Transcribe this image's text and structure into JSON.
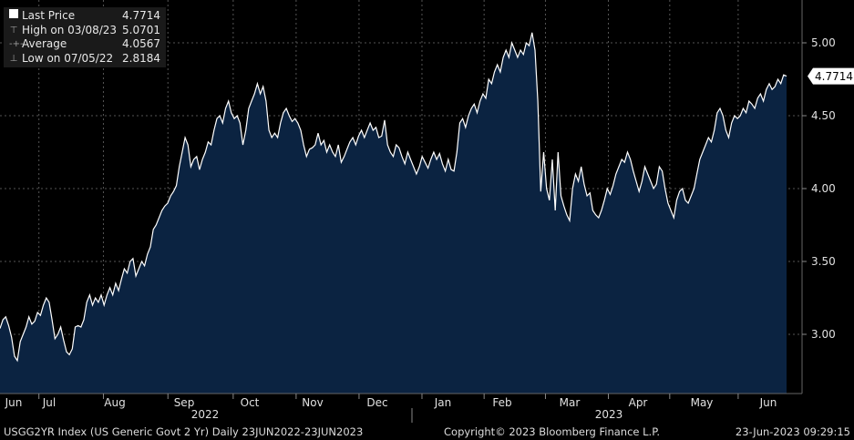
{
  "legend": {
    "rows": [
      {
        "label": "Last Price",
        "value": "4.7714",
        "icon": "filled-square-icon"
      },
      {
        "label": "High on 03/08/23",
        "value": "5.0701",
        "icon": "high-marker-icon"
      },
      {
        "label": "Average",
        "value": "4.0567",
        "icon": "average-marker-icon"
      },
      {
        "label": "Low on 07/05/22",
        "value": "2.8184",
        "icon": "low-marker-icon"
      }
    ]
  },
  "footer": {
    "left": "USGG2YR Index (US Generic Govt 2 Yr)  Daily 23JUN2022-23JUN2023",
    "center": "Copyright© 2023 Bloomberg Finance L.P.",
    "right": "23-Jun-2023 09:29:15"
  },
  "colors": {
    "fill": "#0b2341",
    "line": "#ffffff",
    "background": "#000000",
    "grid": "#555555"
  },
  "chart_data": {
    "type": "area",
    "ylim": [
      2.6,
      5.25
    ],
    "yticks": [
      3.0,
      3.5,
      4.0,
      4.5,
      5.0
    ],
    "ytick_labels": [
      "3.00",
      "3.50",
      "4.00",
      "4.50",
      "5.00"
    ],
    "last_label": "4.7714",
    "x_axis_labels": [
      "Jun",
      "Jul",
      "Aug",
      "Sep",
      "Oct",
      "Nov",
      "Dec",
      "Jan",
      "Feb",
      "Mar",
      "Apr",
      "May",
      "Jun"
    ],
    "year_labels": [
      "2022",
      "2023"
    ],
    "grid": true,
    "series": [
      {
        "values": [
          3.04,
          3.1,
          3.12,
          3.06,
          2.98,
          2.85,
          2.82,
          2.95,
          3.0,
          3.05,
          3.12,
          3.07,
          3.09,
          3.15,
          3.13,
          3.2,
          3.25,
          3.22,
          3.1,
          2.97,
          3.0,
          3.05,
          2.96,
          2.88,
          2.86,
          2.9,
          3.05,
          3.06,
          3.05,
          3.1,
          3.22,
          3.27,
          3.2,
          3.25,
          3.22,
          3.27,
          3.2,
          3.27,
          3.32,
          3.27,
          3.35,
          3.3,
          3.38,
          3.45,
          3.42,
          3.5,
          3.52,
          3.4,
          3.45,
          3.5,
          3.47,
          3.55,
          3.6,
          3.72,
          3.75,
          3.8,
          3.85,
          3.88,
          3.9,
          3.95,
          3.98,
          4.02,
          4.15,
          4.25,
          4.35,
          4.3,
          4.15,
          4.2,
          4.22,
          4.13,
          4.2,
          4.25,
          4.32,
          4.3,
          4.4,
          4.48,
          4.5,
          4.45,
          4.55,
          4.6,
          4.52,
          4.48,
          4.5,
          4.45,
          4.3,
          4.4,
          4.55,
          4.6,
          4.65,
          4.72,
          4.65,
          4.7,
          4.6,
          4.4,
          4.35,
          4.38,
          4.35,
          4.45,
          4.52,
          4.55,
          4.5,
          4.46,
          4.48,
          4.45,
          4.4,
          4.3,
          4.22,
          4.27,
          4.28,
          4.3,
          4.38,
          4.3,
          4.33,
          4.25,
          4.3,
          4.25,
          4.22,
          4.3,
          4.18,
          4.22,
          4.27,
          4.32,
          4.35,
          4.3,
          4.36,
          4.4,
          4.35,
          4.4,
          4.45,
          4.4,
          4.42,
          4.35,
          4.36,
          4.47,
          4.3,
          4.25,
          4.22,
          4.3,
          4.28,
          4.22,
          4.17,
          4.25,
          4.2,
          4.15,
          4.1,
          4.15,
          4.22,
          4.18,
          4.14,
          4.2,
          4.25,
          4.2,
          4.24,
          4.17,
          4.12,
          4.2,
          4.13,
          4.12,
          4.25,
          4.45,
          4.48,
          4.42,
          4.5,
          4.55,
          4.58,
          4.52,
          4.6,
          4.65,
          4.62,
          4.75,
          4.72,
          4.8,
          4.85,
          4.8,
          4.9,
          4.95,
          4.9,
          5.0,
          4.95,
          4.9,
          4.95,
          4.92,
          5.0,
          4.98,
          5.07,
          4.95,
          4.6,
          3.98,
          4.25,
          4.0,
          3.92,
          4.2,
          3.85,
          4.25,
          3.95,
          3.88,
          3.82,
          3.78,
          4.0,
          4.1,
          4.05,
          4.15,
          4.03,
          3.95,
          3.97,
          3.85,
          3.82,
          3.8,
          3.85,
          3.92,
          4.0,
          3.96,
          4.02,
          4.1,
          4.15,
          4.2,
          4.18,
          4.25,
          4.2,
          4.12,
          4.05,
          3.98,
          4.05,
          4.15,
          4.1,
          4.05,
          4.0,
          4.03,
          4.15,
          4.12,
          4.0,
          3.9,
          3.85,
          3.8,
          3.92,
          3.98,
          4.0,
          3.92,
          3.9,
          3.95,
          4.0,
          4.1,
          4.2,
          4.25,
          4.3,
          4.35,
          4.32,
          4.4,
          4.52,
          4.55,
          4.5,
          4.4,
          4.35,
          4.45,
          4.5,
          4.48,
          4.5,
          4.55,
          4.52,
          4.6,
          4.58,
          4.55,
          4.62,
          4.65,
          4.6,
          4.68,
          4.72,
          4.68,
          4.7,
          4.75,
          4.72,
          4.78,
          4.7714
        ]
      }
    ]
  }
}
